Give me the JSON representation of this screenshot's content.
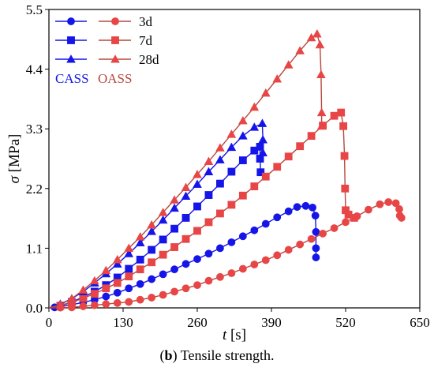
{
  "chart_data": {
    "type": "line",
    "xlabel": "t [s]",
    "ylabel": "σ [MPa]",
    "xlim": [
      0,
      650
    ],
    "ylim": [
      0,
      5.5
    ],
    "xticks": [
      "0",
      "130",
      "260",
      "390",
      "520",
      "650"
    ],
    "yticks": [
      "0.0",
      "1.1",
      "2.2",
      "3.3",
      "4.4",
      "5.5"
    ],
    "group_labels": [
      "CASS",
      "OASS"
    ],
    "legend_labels": [
      "3d",
      "7d",
      "28d"
    ],
    "legend_position": "top-left",
    "series": [
      {
        "name": "CASS 3d",
        "group": "CASS",
        "age": "3d",
        "marker": "circle",
        "color": "#1515e8",
        "points": [
          [
            0,
            0
          ],
          [
            10,
            0.01
          ],
          [
            20,
            0.03
          ],
          [
            40,
            0.06
          ],
          [
            60,
            0.1
          ],
          [
            80,
            0.15
          ],
          [
            100,
            0.21
          ],
          [
            120,
            0.28
          ],
          [
            140,
            0.36
          ],
          [
            160,
            0.44
          ],
          [
            180,
            0.53
          ],
          [
            200,
            0.62
          ],
          [
            220,
            0.71
          ],
          [
            240,
            0.81
          ],
          [
            260,
            0.9
          ],
          [
            280,
            1.0
          ],
          [
            300,
            1.1
          ],
          [
            320,
            1.21
          ],
          [
            340,
            1.32
          ],
          [
            360,
            1.43
          ],
          [
            380,
            1.55
          ],
          [
            400,
            1.67
          ],
          [
            420,
            1.78
          ],
          [
            435,
            1.86
          ],
          [
            450,
            1.88
          ],
          [
            462,
            1.85
          ],
          [
            467,
            1.7
          ],
          [
            468,
            1.4
          ],
          [
            468,
            1.1
          ],
          [
            468,
            0.93
          ]
        ]
      },
      {
        "name": "OASS 3d",
        "group": "OASS",
        "age": "3d",
        "marker": "circle",
        "color": "#e84646",
        "points": [
          [
            0,
            0
          ],
          [
            20,
            0.005
          ],
          [
            40,
            0.01
          ],
          [
            60,
            0.03
          ],
          [
            80,
            0.05
          ],
          [
            100,
            0.07
          ],
          [
            120,
            0.09
          ],
          [
            140,
            0.11
          ],
          [
            160,
            0.15
          ],
          [
            180,
            0.19
          ],
          [
            200,
            0.24
          ],
          [
            220,
            0.3
          ],
          [
            240,
            0.36
          ],
          [
            260,
            0.42
          ],
          [
            280,
            0.5
          ],
          [
            300,
            0.57
          ],
          [
            320,
            0.64
          ],
          [
            340,
            0.72
          ],
          [
            360,
            0.8
          ],
          [
            380,
            0.88
          ],
          [
            400,
            0.97
          ],
          [
            420,
            1.07
          ],
          [
            440,
            1.17
          ],
          [
            460,
            1.27
          ],
          [
            480,
            1.37
          ],
          [
            500,
            1.47
          ],
          [
            520,
            1.58
          ],
          [
            540,
            1.69
          ],
          [
            560,
            1.81
          ],
          [
            580,
            1.91
          ],
          [
            595,
            1.95
          ],
          [
            608,
            1.93
          ],
          [
            614,
            1.82
          ],
          [
            615,
            1.7
          ],
          [
            618,
            1.66
          ]
        ]
      },
      {
        "name": "CASS 7d",
        "group": "CASS",
        "age": "7d",
        "marker": "square",
        "color": "#1515e8",
        "points": [
          [
            0,
            0
          ],
          [
            20,
            0.04
          ],
          [
            40,
            0.11
          ],
          [
            60,
            0.2
          ],
          [
            80,
            0.3
          ],
          [
            100,
            0.42
          ],
          [
            120,
            0.56
          ],
          [
            140,
            0.72
          ],
          [
            160,
            0.89
          ],
          [
            180,
            1.07
          ],
          [
            200,
            1.26
          ],
          [
            220,
            1.46
          ],
          [
            240,
            1.66
          ],
          [
            260,
            1.87
          ],
          [
            280,
            2.08
          ],
          [
            300,
            2.29
          ],
          [
            320,
            2.51
          ],
          [
            340,
            2.72
          ],
          [
            360,
            2.9
          ],
          [
            370,
            2.97
          ],
          [
            370,
            2.75
          ],
          [
            371,
            2.5
          ]
        ]
      },
      {
        "name": "OASS 7d",
        "group": "OASS",
        "age": "7d",
        "marker": "square",
        "color": "#e84646",
        "points": [
          [
            0,
            0
          ],
          [
            20,
            0.04
          ],
          [
            40,
            0.1
          ],
          [
            60,
            0.18
          ],
          [
            80,
            0.26
          ],
          [
            100,
            0.36
          ],
          [
            120,
            0.46
          ],
          [
            140,
            0.58
          ],
          [
            160,
            0.71
          ],
          [
            180,
            0.84
          ],
          [
            200,
            0.98
          ],
          [
            220,
            1.12
          ],
          [
            240,
            1.27
          ],
          [
            260,
            1.42
          ],
          [
            280,
            1.58
          ],
          [
            300,
            1.74
          ],
          [
            320,
            1.9
          ],
          [
            340,
            2.07
          ],
          [
            360,
            2.24
          ],
          [
            380,
            2.42
          ],
          [
            400,
            2.6
          ],
          [
            420,
            2.79
          ],
          [
            440,
            2.98
          ],
          [
            460,
            3.17
          ],
          [
            480,
            3.36
          ],
          [
            500,
            3.54
          ],
          [
            512,
            3.6
          ],
          [
            516,
            3.35
          ],
          [
            518,
            2.8
          ],
          [
            519,
            2.2
          ],
          [
            520,
            1.8
          ],
          [
            525,
            1.72
          ],
          [
            535,
            1.66
          ]
        ]
      },
      {
        "name": "CASS 28d",
        "group": "CASS",
        "age": "28d",
        "marker": "triangle",
        "color": "#1515e8",
        "points": [
          [
            0,
            0
          ],
          [
            20,
            0.07
          ],
          [
            40,
            0.17
          ],
          [
            60,
            0.3
          ],
          [
            80,
            0.46
          ],
          [
            100,
            0.63
          ],
          [
            120,
            0.81
          ],
          [
            140,
            1.0
          ],
          [
            160,
            1.2
          ],
          [
            180,
            1.41
          ],
          [
            200,
            1.62
          ],
          [
            220,
            1.84
          ],
          [
            240,
            2.06
          ],
          [
            260,
            2.28
          ],
          [
            280,
            2.51
          ],
          [
            300,
            2.73
          ],
          [
            320,
            2.96
          ],
          [
            340,
            3.17
          ],
          [
            360,
            3.33
          ],
          [
            374,
            3.4
          ],
          [
            375,
            3.1
          ],
          [
            375,
            2.86
          ]
        ]
      },
      {
        "name": "OASS 28d",
        "group": "OASS",
        "age": "28d",
        "marker": "triangle",
        "color": "#e84646",
        "points": [
          [
            0,
            0
          ],
          [
            20,
            0.06
          ],
          [
            40,
            0.17
          ],
          [
            60,
            0.33
          ],
          [
            80,
            0.5
          ],
          [
            100,
            0.69
          ],
          [
            120,
            0.89
          ],
          [
            140,
            1.1
          ],
          [
            160,
            1.31
          ],
          [
            180,
            1.53
          ],
          [
            200,
            1.76
          ],
          [
            220,
            1.99
          ],
          [
            240,
            2.22
          ],
          [
            260,
            2.46
          ],
          [
            280,
            2.7
          ],
          [
            300,
            2.95
          ],
          [
            320,
            3.2
          ],
          [
            340,
            3.45
          ],
          [
            360,
            3.7
          ],
          [
            380,
            3.96
          ],
          [
            400,
            4.22
          ],
          [
            420,
            4.48
          ],
          [
            440,
            4.74
          ],
          [
            460,
            4.98
          ],
          [
            470,
            5.05
          ],
          [
            475,
            4.85
          ],
          [
            477,
            4.3
          ],
          [
            478,
            3.6
          ],
          [
            478,
            3.35
          ]
        ]
      }
    ]
  },
  "caption": {
    "bold": "b",
    "text": "Tensile strength."
  }
}
